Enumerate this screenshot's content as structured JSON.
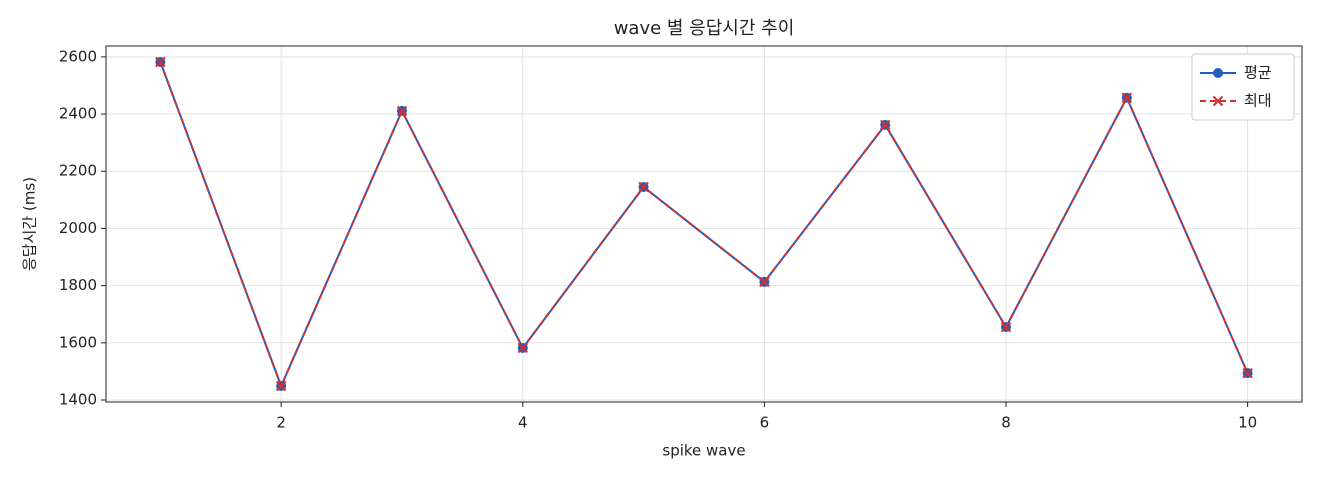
{
  "chart_data": {
    "type": "line",
    "title": "wave 별 응답시간 추이",
    "x_label": "spike wave",
    "y_label": "응답시간 (ms)",
    "x": [
      1,
      2,
      3,
      4,
      5,
      6,
      7,
      8,
      9,
      10
    ],
    "series": [
      {
        "name": "평균",
        "color": "#1f5fbf",
        "marker": "circle",
        "dash": false,
        "values": [
          2582,
          1449,
          2411,
          1582,
          2145,
          1813,
          2362,
          1655,
          2457,
          1494
        ]
      },
      {
        "name": "최대",
        "color": "#d03030",
        "marker": "x",
        "dash": true,
        "values": [
          2582,
          1449,
          2411,
          1582,
          2145,
          1813,
          2362,
          1655,
          2457,
          1494
        ]
      }
    ],
    "xlim": [
      0.55,
      10.45
    ],
    "xticks": [
      2,
      4,
      6,
      8,
      10
    ],
    "ylim": [
      1393,
      2638
    ],
    "yticks": [
      1400,
      1600,
      1800,
      2000,
      2200,
      2400,
      2600
    ],
    "grid": true,
    "legend": "upper-right"
  }
}
